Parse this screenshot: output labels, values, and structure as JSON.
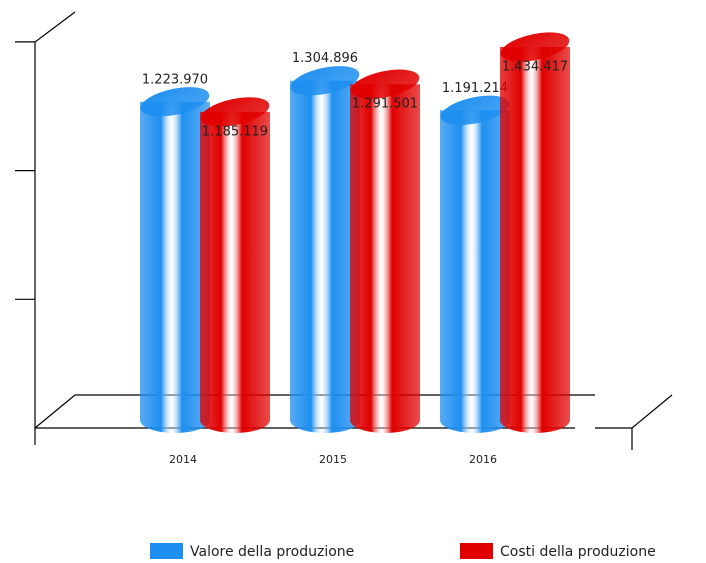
{
  "chart_data": {
    "type": "bar3d",
    "categories": [
      "2014",
      "2015",
      "2016"
    ],
    "series": [
      {
        "name": "Valore della produzione",
        "color": "#1e8ff0",
        "values": [
          1223970,
          1304896,
          1191214
        ],
        "value_labels": [
          "1.223.970",
          "1.304.896",
          "1.191.214"
        ]
      },
      {
        "name": "Costi della produzione",
        "color": "#e00000",
        "values": [
          1185119,
          1291501,
          1434417
        ],
        "value_labels": [
          "1.185.119",
          "1.291.501",
          "1.434.417"
        ]
      }
    ],
    "ylim": [
      0,
      1500000
    ]
  }
}
